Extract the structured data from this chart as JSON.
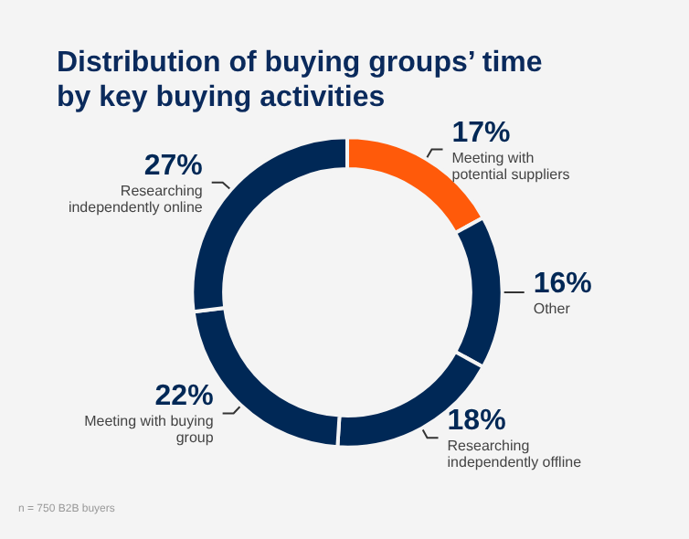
{
  "chart_data": {
    "type": "donut",
    "title": "Distribution of buying groups’ time by key buying activities",
    "categories": [
      "Meeting with potential suppliers",
      "Other",
      "Researching independently offline",
      "Meeting with buying group",
      "Researching independently online"
    ],
    "values": [
      17,
      16,
      18,
      22,
      27
    ],
    "value_labels": [
      "17%",
      "16%",
      "18%",
      "22%",
      "27%"
    ],
    "colors": [
      "#ff5a0a",
      "#002856",
      "#002856",
      "#002856",
      "#002856"
    ],
    "annotations": [
      "n = 750 B2B buyers"
    ],
    "legend": false
  }
}
